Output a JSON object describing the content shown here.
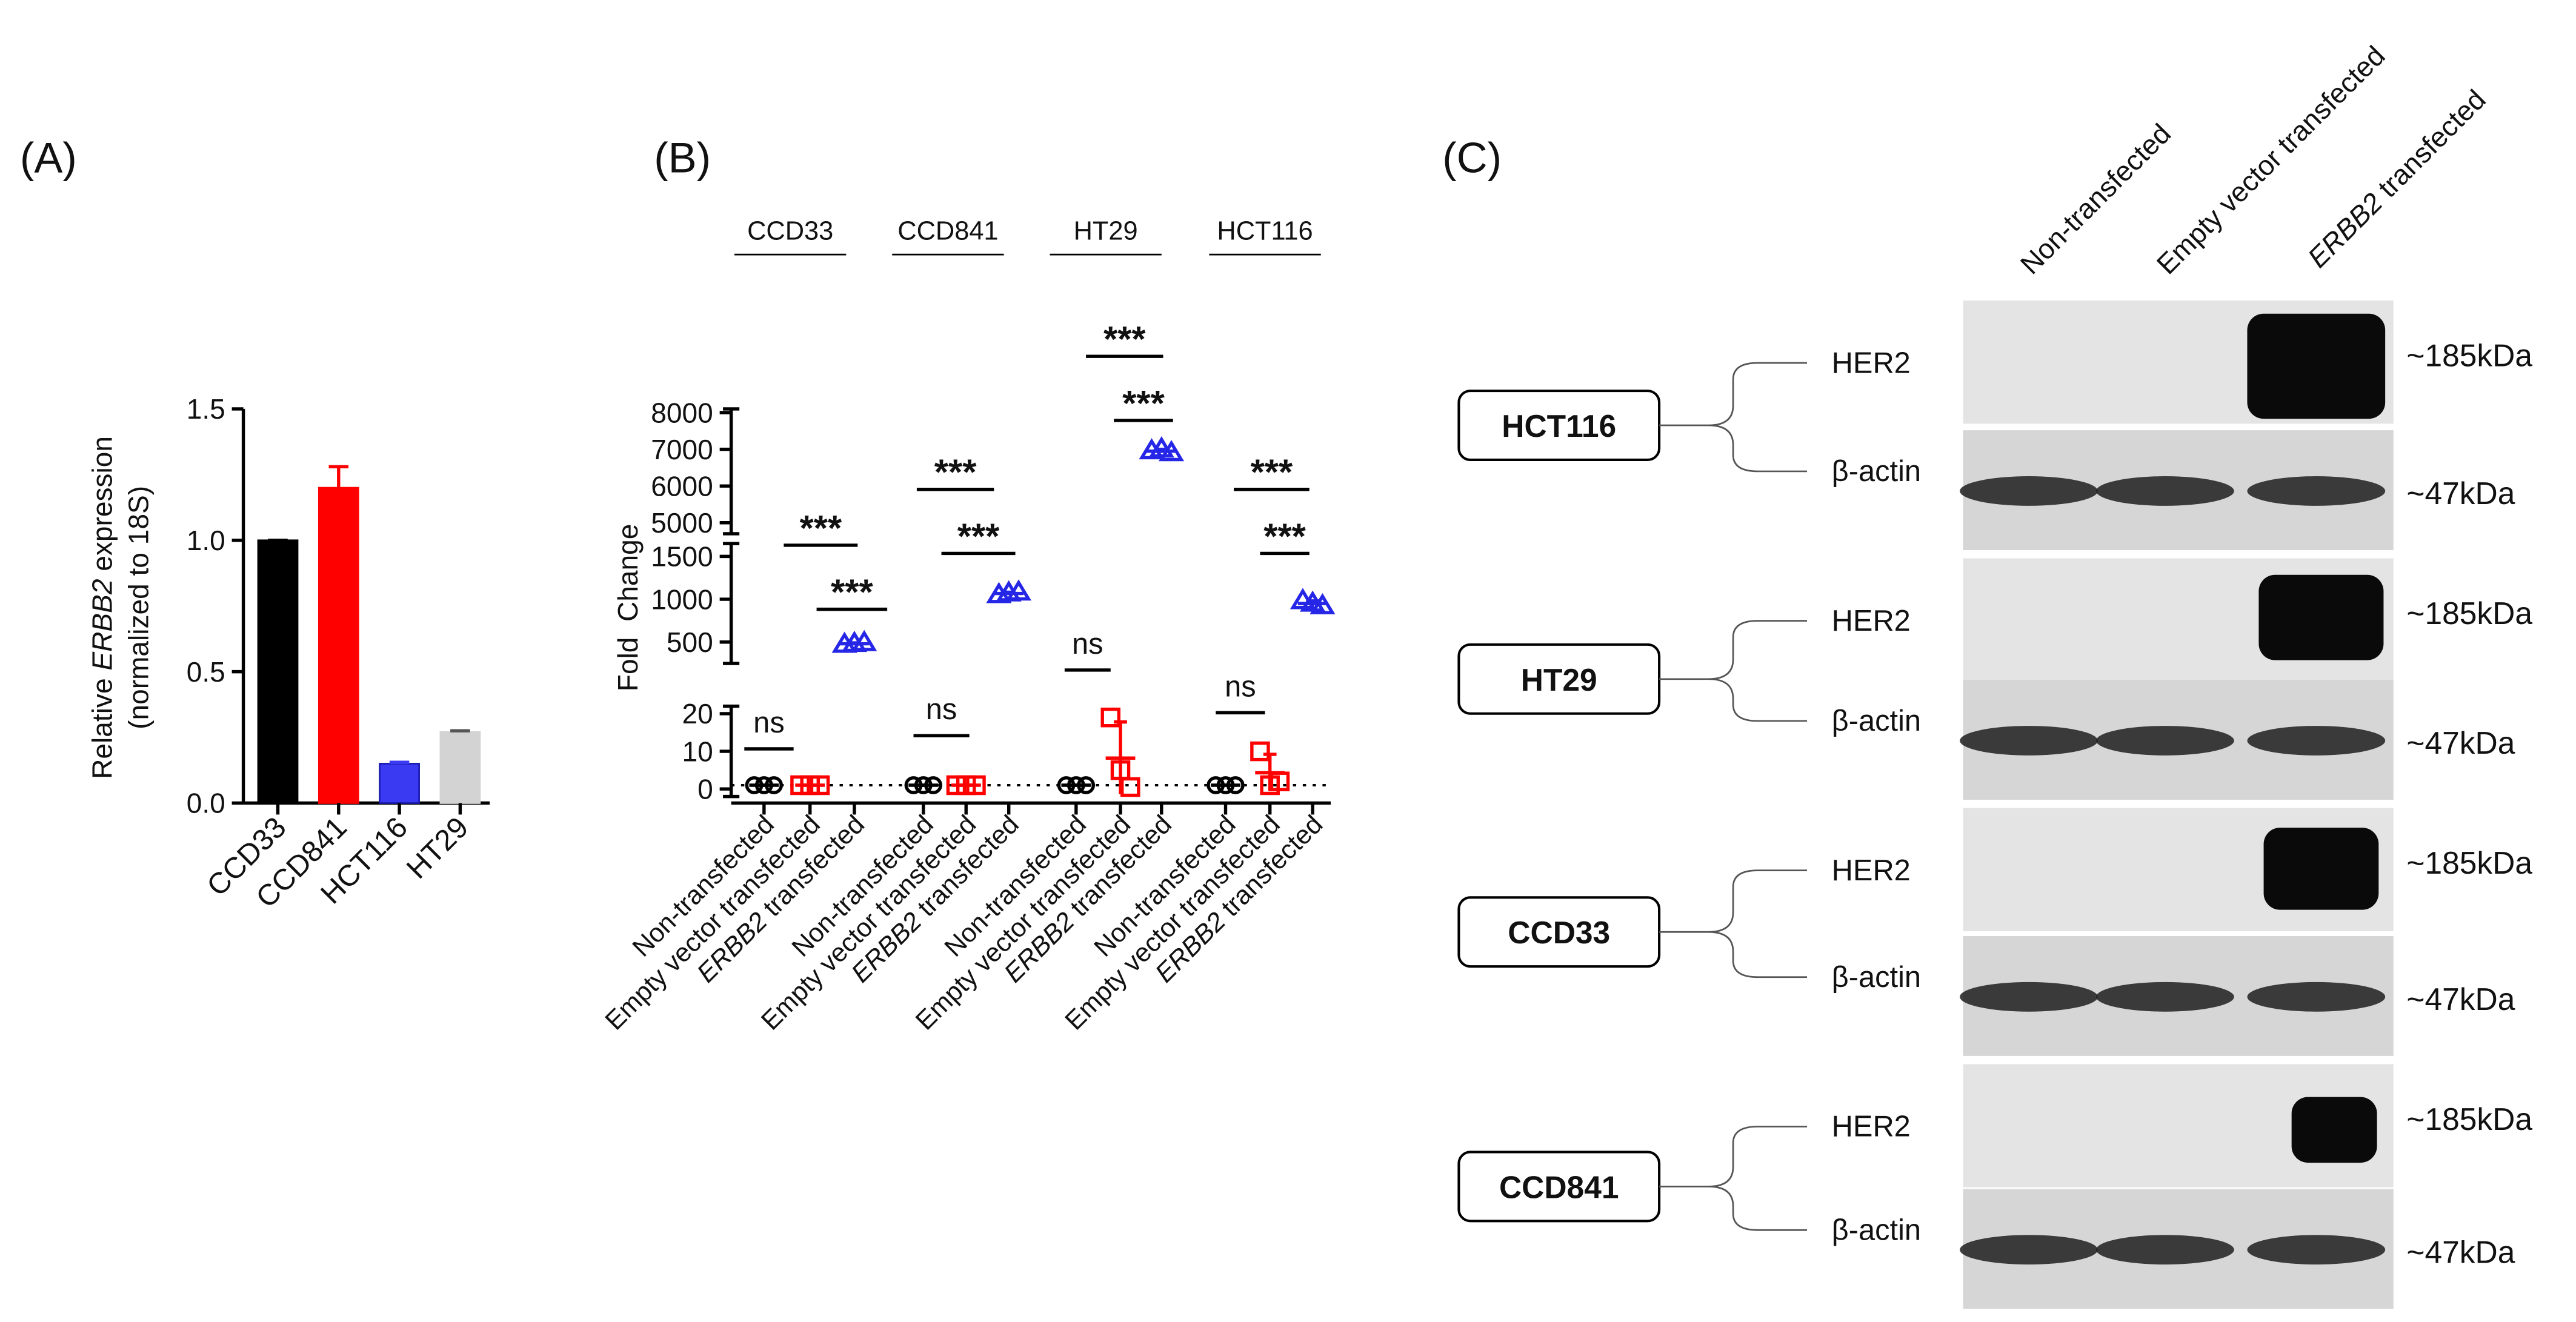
{
  "chart_data": [
    {
      "type": "bar",
      "panel_label": "(A)",
      "ylabel": {
        "before": "Relative ",
        "italic": "ERBB2",
        "after": " expression",
        "line2": "(normalized to 18S)"
      },
      "categories": [
        "CCD33",
        "CCD841",
        "HCT116",
        "HT29"
      ],
      "values": [
        1.0,
        1.2,
        0.15,
        0.27
      ],
      "errors": [
        0,
        0.08,
        0.005,
        0.005
      ],
      "colors": [
        "#000000",
        "#ff0000",
        "#3a3af2",
        "#d3d3d3"
      ],
      "ylim": [
        0,
        1.5
      ],
      "yticks": [
        {
          "value": 0,
          "label": "0.0"
        },
        0.5,
        {
          "value": 1,
          "label": "1.0"
        },
        1.5
      ]
    },
    {
      "type": "scatter",
      "panel_label": "(B)",
      "ylabel": "Fold  Change",
      "groups": [
        "CCD33",
        "CCD841",
        "HT29",
        "HCT116"
      ],
      "conditions": [
        {
          "text": "Non-transfected"
        },
        {
          "text": "Empty vector transfected"
        },
        {
          "italic": "ERBB2",
          "text": " transfected"
        }
      ],
      "segments": [
        {
          "ylim": [
            -2,
            22
          ],
          "yticks": [
            0,
            10,
            20
          ]
        },
        {
          "ylim": [
            250,
            1650
          ],
          "yticks": [
            500,
            1000,
            1500
          ]
        },
        {
          "ylim": [
            4700,
            8100
          ],
          "yticks": [
            5000,
            6000,
            7000,
            8000
          ]
        }
      ],
      "reference_line": 1,
      "series": [
        {
          "color": "#000000",
          "marker": "circle",
          "values": [
            [
              1,
              1,
              1
            ],
            [
              1,
              1,
              1
            ],
            [
              1,
              1,
              1
            ],
            [
              1,
              1,
              1
            ]
          ],
          "means": [
            1,
            1,
            1,
            1
          ],
          "sd": [
            0,
            0,
            0,
            0
          ]
        },
        {
          "color": "#ff0000",
          "marker": "square",
          "values": [
            [
              1,
              1,
              1
            ],
            [
              1,
              1,
              1
            ],
            [
              19,
              5,
              0.5
            ],
            [
              10,
              1,
              2
            ]
          ],
          "means": [
            1,
            1,
            8.2,
            4.3
          ],
          "sd": [
            0,
            0,
            9.6,
            4.9
          ]
        },
        {
          "color": "#2626e6",
          "marker": "triangle",
          "values": [
            [
              470,
              480,
              490
            ],
            [
              1050,
              1070,
              1080
            ],
            [
              6950,
              7000,
              6900
            ],
            [
              980,
              950,
              920
            ]
          ],
          "means": [
            480,
            1067,
            6950,
            950
          ],
          "sd": [
            10,
            15,
            50,
            30
          ]
        }
      ],
      "significance": [
        [
          "***",
          "***",
          "ns"
        ],
        [
          "***",
          "***",
          "ns"
        ],
        [
          "***",
          "***",
          "ns"
        ],
        [
          "***",
          "***",
          "ns"
        ]
      ]
    }
  ],
  "panel_c": {
    "label": "(C)",
    "columns": [
      {
        "text": "Non-transfected"
      },
      {
        "text": "Empty vector transfected"
      },
      {
        "italic": "ERBB2",
        "text": " transfected"
      }
    ],
    "blots": [
      {
        "cell_line": "HCT116",
        "bands": [
          {
            "protein": "HER2",
            "size": "~185kDa"
          },
          {
            "protein": "β-actin",
            "size": "~47kDa"
          }
        ]
      },
      {
        "cell_line": "HT29",
        "bands": [
          {
            "protein": "HER2",
            "size": "~185kDa"
          },
          {
            "protein": "β-actin",
            "size": "~47kDa"
          }
        ]
      },
      {
        "cell_line": "CCD33",
        "bands": [
          {
            "protein": "HER2",
            "size": "~185kDa"
          },
          {
            "protein": "β-actin",
            "size": "~47kDa"
          }
        ]
      },
      {
        "cell_line": "CCD841",
        "bands": [
          {
            "protein": "HER2",
            "size": "~185kDa"
          },
          {
            "protein": "β-actin",
            "size": "~47kDa"
          }
        ]
      }
    ]
  }
}
